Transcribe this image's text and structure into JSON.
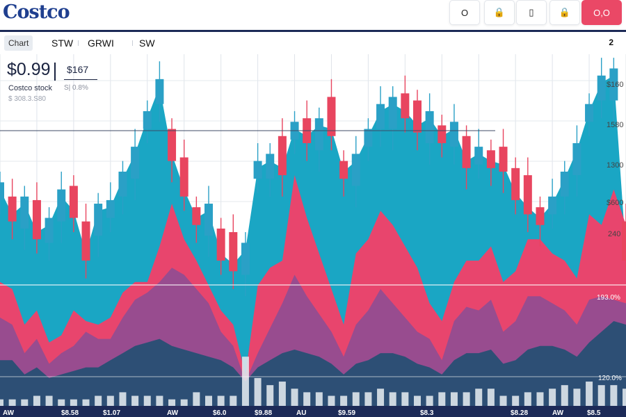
{
  "header": {
    "logo_text": "Costco",
    "buttons": [
      {
        "icon": "circle-icon",
        "glyph": "O"
      },
      {
        "icon": "lock-icon",
        "glyph": "🔒"
      },
      {
        "icon": "battery-icon",
        "glyph": "▯"
      },
      {
        "icon": "lock-icon",
        "glyph": "🔒"
      },
      {
        "icon": "search-icon",
        "glyph": "O,O"
      }
    ]
  },
  "tabs": [
    "Chart",
    "STW",
    "GRWI",
    "SW"
  ],
  "zoom_label": "2",
  "quote": {
    "price": "$0.99",
    "alt_price": "$167",
    "name": "Costco stock",
    "change": "S| 0.8%",
    "range": "$ 308.3.S80"
  },
  "colors": {
    "teal": "#1aa6c4",
    "pink": "#e8456d",
    "purple": "#8a4d95",
    "navy": "#2d4f75",
    "candle_up": "#2aa0c6",
    "candle_down": "#e8455f",
    "bar_bottom": "#1c2a57"
  },
  "chart_data": {
    "type": "area",
    "candle_count": 52,
    "y_axis_ticks": [
      "$160",
      "1580",
      "1300",
      "$600",
      "240"
    ],
    "overlay_values": [
      "193.0%",
      "120.0%"
    ],
    "x_axis_ticks": [
      "AW",
      "$8.58",
      "$1.07",
      "AW",
      "$6.0",
      "$9.88",
      "AU",
      "$9.59",
      "$8.3",
      "$8.28",
      "AW",
      "$8.5"
    ],
    "series": [
      {
        "values": [
          62,
          55,
          58,
          50,
          52,
          60,
          56,
          44,
          56,
          57,
          65,
          72,
          82,
          91,
          72,
          62,
          54,
          56,
          44,
          41,
          45,
          68,
          70,
          68,
          79,
          77,
          80,
          79,
          67,
          70,
          77,
          84,
          86,
          84,
          80,
          82,
          77,
          79,
          70,
          72,
          70,
          69,
          61,
          57,
          54,
          58,
          65,
          73,
          84,
          92,
          94,
          44
        ]
      },
      {
        "values": [
          36,
          34,
          24,
          28,
          19,
          21,
          28,
          25,
          24,
          26,
          33,
          36,
          36,
          46,
          58,
          48,
          42,
          35,
          28,
          24,
          10,
          35,
          40,
          42,
          66,
          54,
          44,
          34,
          24,
          44,
          48,
          56,
          52,
          46,
          40,
          30,
          25,
          36,
          42,
          42,
          46,
          36,
          39,
          48,
          48,
          44,
          42,
          37,
          55,
          52,
          62,
          52
        ]
      },
      {
        "values": [
          26,
          24,
          16,
          20,
          13,
          16,
          18,
          22,
          20,
          20,
          26,
          31,
          33,
          36,
          40,
          38,
          34,
          30,
          22,
          18,
          8,
          16,
          23,
          30,
          38,
          32,
          27,
          22,
          15,
          24,
          28,
          34,
          30,
          26,
          22,
          20,
          14,
          25,
          29,
          28,
          31,
          22,
          25,
          32,
          32,
          30,
          28,
          24,
          31,
          32,
          31,
          30
        ]
      },
      {
        "values": [
          14,
          14,
          10,
          12,
          9,
          10,
          11,
          12,
          12,
          14,
          16,
          18,
          19,
          20,
          18,
          17,
          16,
          15,
          14,
          12,
          8,
          12,
          14,
          16,
          17,
          16,
          15,
          13,
          10,
          13,
          14,
          16,
          16,
          15,
          13,
          12,
          10,
          14,
          16,
          16,
          17,
          13,
          14,
          17,
          18,
          18,
          17,
          15,
          19,
          22,
          25,
          24
        ]
      },
      {
        "values": [
          3,
          3,
          3,
          4,
          4,
          3,
          3,
          3,
          4,
          4,
          5,
          4,
          4,
          4,
          3,
          3,
          5,
          4,
          4,
          4,
          15,
          9,
          7,
          8,
          6,
          5,
          5,
          4,
          4,
          5,
          5,
          6,
          5,
          5,
          4,
          4,
          5,
          5,
          5,
          6,
          6,
          4,
          4,
          5,
          5,
          6,
          7,
          6,
          8,
          7,
          7,
          6
        ]
      }
    ]
  }
}
